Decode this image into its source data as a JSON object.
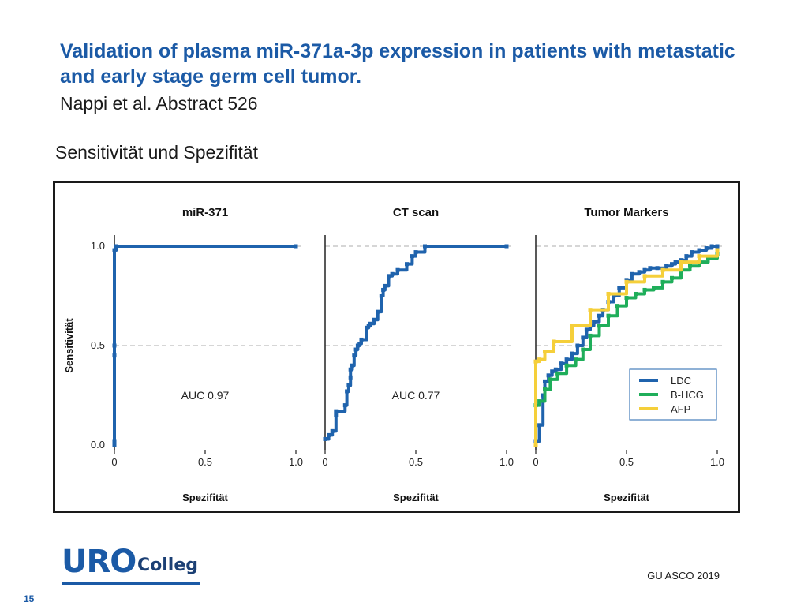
{
  "slide": {
    "title": "Validation of plasma miR-371a-3p expression in patients with metastatic and early stage germ cell tumor.",
    "reference": "Nappi et al. Abstract 526",
    "section_heading": "Sensitivität und Spezifität",
    "source": "GU ASCO 2019",
    "page_number": "15"
  },
  "logo": {
    "part1": "URO",
    "part2": "Colleg"
  },
  "colors": {
    "accent": "#1b5aa6",
    "ldc": "#1f63ad",
    "bhcg": "#1fae5a",
    "afp": "#f5cf3a"
  },
  "chart_data": [
    {
      "type": "line",
      "title": "miR-371",
      "xlabel": "Spezifität",
      "ylabel": "Sensitivität",
      "xlim": [
        0,
        1.0
      ],
      "ylim": [
        0,
        1.0
      ],
      "xticks": [
        "0",
        "0.5",
        "1.0"
      ],
      "yticks": [
        "0.0",
        "0.5",
        "1.0"
      ],
      "annotation": "AUC 0.97",
      "series": [
        {
          "name": "miR-371",
          "color": "#1f63ad",
          "x": [
            0,
            0,
            0,
            0,
            0,
            0.01,
            1.0
          ],
          "y": [
            0,
            0.02,
            0.45,
            0.5,
            0.98,
            1.0,
            1.0
          ]
        }
      ]
    },
    {
      "type": "line",
      "title": "CT scan",
      "xlabel": "Spezifität",
      "ylabel": "",
      "xlim": [
        0,
        1.0
      ],
      "ylim": [
        0,
        1.0
      ],
      "xticks": [
        "0",
        "0.5",
        "1.0"
      ],
      "yticks": [],
      "annotation": "AUC 0.77",
      "series": [
        {
          "name": "CT scan",
          "color": "#1f63ad",
          "x": [
            0,
            0.02,
            0.04,
            0.06,
            0.06,
            0.11,
            0.12,
            0.13,
            0.14,
            0.14,
            0.15,
            0.16,
            0.17,
            0.18,
            0.19,
            0.2,
            0.23,
            0.24,
            0.25,
            0.27,
            0.29,
            0.31,
            0.32,
            0.33,
            0.35,
            0.37,
            0.4,
            0.45,
            0.48,
            0.5,
            0.55,
            1.0
          ],
          "y": [
            0.03,
            0.05,
            0.07,
            0.15,
            0.17,
            0.2,
            0.27,
            0.3,
            0.34,
            0.38,
            0.4,
            0.45,
            0.48,
            0.5,
            0.51,
            0.53,
            0.59,
            0.6,
            0.61,
            0.63,
            0.67,
            0.75,
            0.78,
            0.8,
            0.85,
            0.86,
            0.88,
            0.91,
            0.95,
            0.97,
            1.0,
            1.0
          ]
        }
      ]
    },
    {
      "type": "line",
      "title": "Tumor Markers",
      "xlabel": "Spezifität",
      "ylabel": "",
      "xlim": [
        0,
        1.0
      ],
      "ylim": [
        0,
        1.0
      ],
      "xticks": [
        "0",
        "0.5",
        "1.0"
      ],
      "yticks": [],
      "legend": [
        "LDC",
        "B-HCG",
        "AFP"
      ],
      "legend_position": "bottom-right",
      "series": [
        {
          "name": "LDC",
          "color": "#1f63ad",
          "x": [
            0,
            0.02,
            0.04,
            0.05,
            0.07,
            0.09,
            0.11,
            0.14,
            0.17,
            0.2,
            0.23,
            0.26,
            0.28,
            0.3,
            0.32,
            0.35,
            0.37,
            0.4,
            0.43,
            0.46,
            0.5,
            0.53,
            0.57,
            0.6,
            0.63,
            0.67,
            0.72,
            0.75,
            0.77,
            0.8,
            0.83,
            0.86,
            0.9,
            0.94,
            0.97,
            1.0
          ],
          "y": [
            0.02,
            0.1,
            0.25,
            0.32,
            0.35,
            0.37,
            0.38,
            0.41,
            0.43,
            0.46,
            0.5,
            0.54,
            0.58,
            0.6,
            0.62,
            0.65,
            0.68,
            0.72,
            0.75,
            0.79,
            0.83,
            0.86,
            0.87,
            0.88,
            0.89,
            0.89,
            0.9,
            0.91,
            0.92,
            0.93,
            0.95,
            0.97,
            0.98,
            0.99,
            1.0,
            1.0
          ]
        },
        {
          "name": "B-HCG",
          "color": "#1fae5a",
          "x": [
            0,
            0.02,
            0.05,
            0.08,
            0.12,
            0.17,
            0.22,
            0.26,
            0.3,
            0.35,
            0.4,
            0.45,
            0.5,
            0.55,
            0.6,
            0.65,
            0.7,
            0.75,
            0.8,
            0.85,
            0.9,
            0.95,
            1.0
          ],
          "y": [
            0.2,
            0.22,
            0.28,
            0.33,
            0.36,
            0.4,
            0.43,
            0.48,
            0.55,
            0.6,
            0.65,
            0.7,
            0.74,
            0.76,
            0.78,
            0.79,
            0.82,
            0.84,
            0.88,
            0.9,
            0.92,
            0.94,
            0.96
          ]
        },
        {
          "name": "AFP",
          "color": "#f5cf3a",
          "x": [
            0,
            0,
            0.02,
            0.05,
            0.1,
            0.2,
            0.3,
            0.4,
            0.5,
            0.6,
            0.7,
            0.8,
            0.9,
            1.0
          ],
          "y": [
            0,
            0.42,
            0.43,
            0.47,
            0.52,
            0.6,
            0.68,
            0.76,
            0.82,
            0.85,
            0.88,
            0.92,
            0.95,
            0.98
          ]
        }
      ]
    }
  ]
}
